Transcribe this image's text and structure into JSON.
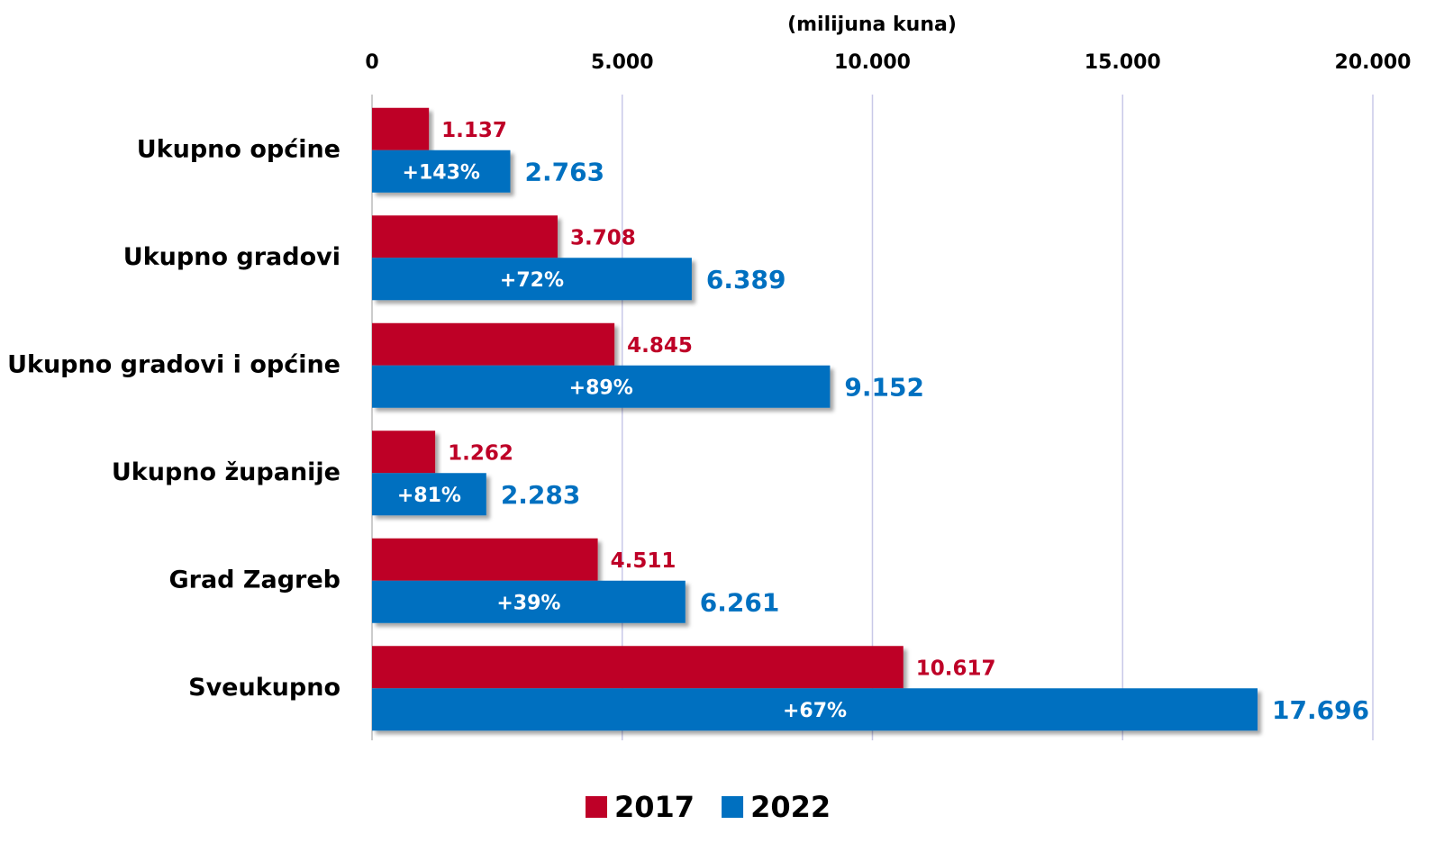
{
  "chart_data": {
    "type": "hbar",
    "x_label": "(milijuna kuna)",
    "categories": [
      "Ukupno općine",
      "Ukupno gradovi",
      "Ukupno gradovi i općine",
      "Ukupno županije",
      "Grad Zagreb",
      "Sveukupno"
    ],
    "series": [
      {
        "name": "2017",
        "color": "#be0027",
        "values": [
          1137,
          3708,
          4845,
          1262,
          4511,
          10617
        ],
        "value_labels": [
          "1.137",
          "3.708",
          "4.845",
          "1.262",
          "4.511",
          "10.617"
        ]
      },
      {
        "name": "2022",
        "color": "#0070c0",
        "values": [
          2763,
          6389,
          9152,
          2283,
          6261,
          17696
        ],
        "value_labels": [
          "2.763",
          "6.389",
          "9.152",
          "2.283",
          "6.261",
          "17.696"
        ],
        "change_labels": [
          "+143%",
          "+72%",
          "+89%",
          "+81%",
          "+39%",
          "+67%"
        ]
      }
    ],
    "xlim": [
      0,
      20000
    ],
    "xticks": [
      0,
      {
        "value": 5000,
        "label": "5.000"
      },
      {
        "value": 10000,
        "label": "10.000"
      },
      {
        "value": 15000,
        "label": "15.000"
      },
      {
        "value": 20000,
        "label": "20.000"
      }
    ],
    "grid": true,
    "legend": "bottom"
  }
}
